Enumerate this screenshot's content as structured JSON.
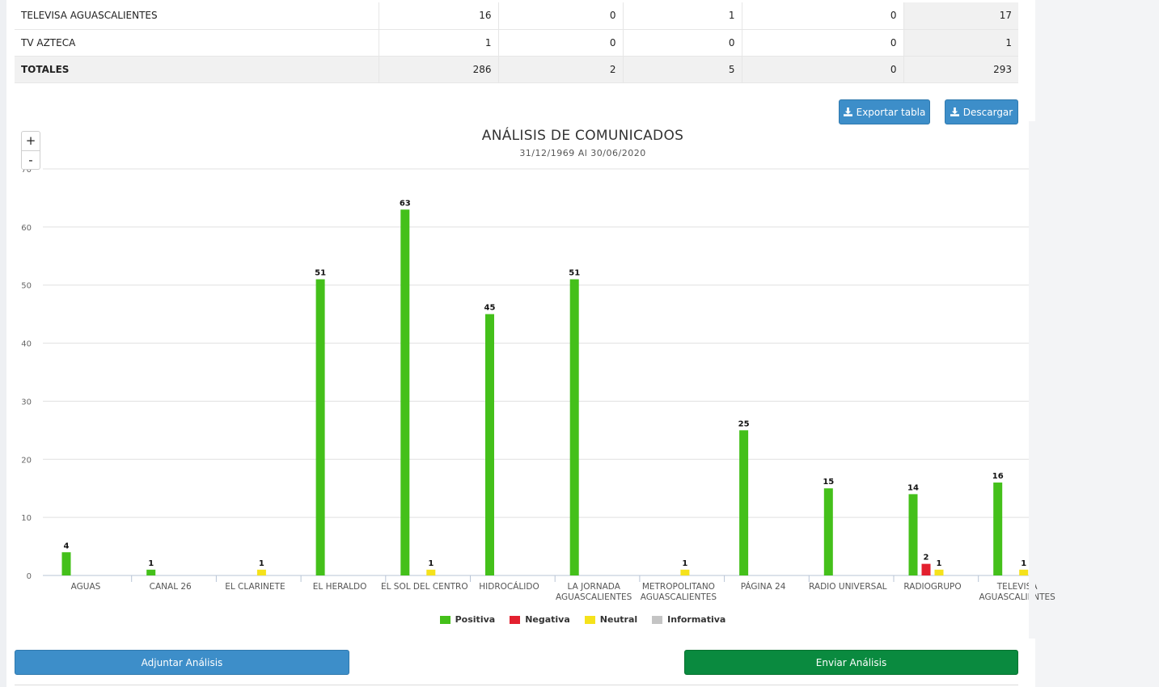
{
  "table": {
    "rows": [
      {
        "name": "TELEVISA AGUASCALIENTES",
        "positiva": "16",
        "negativa": "0",
        "neutral": "1",
        "informativa": "0",
        "total": "17"
      },
      {
        "name": "TV AZTECA",
        "positiva": "1",
        "negativa": "0",
        "neutral": "0",
        "informativa": "0",
        "total": "1"
      }
    ],
    "totals": {
      "label": "TOTALES",
      "positiva": "286",
      "negativa": "2",
      "neutral": "5",
      "informativa": "0",
      "total": "293"
    }
  },
  "toolbar": {
    "export_label": "Exportar tabla",
    "download_label": "Descargar"
  },
  "zoom": {
    "plus": "+",
    "minus": "-"
  },
  "colors": {
    "positiva": "#44c01a",
    "negativa": "#e3202f",
    "neutral": "#f5e21b",
    "informativa": "#c4c4c4",
    "button_blue": "#3d8ec9",
    "button_green": "#0a8a3f"
  },
  "chart_data": {
    "type": "bar",
    "title": "ANÁLISIS DE COMUNICADOS",
    "subtitle": "31/12/1969 Al 30/06/2020",
    "ylim": [
      0,
      70
    ],
    "yticks": [
      0,
      10,
      20,
      30,
      40,
      50,
      60,
      70
    ],
    "grid": true,
    "legend_position": "bottom",
    "categories": [
      [
        "AGUAS"
      ],
      [
        "CANAL 26"
      ],
      [
        "EL CLARINETE"
      ],
      [
        "EL HERALDO"
      ],
      [
        "EL SOL DEL CENTRO"
      ],
      [
        "HIDROCÁLIDO"
      ],
      [
        "LA JORNADA",
        "AGUASCALIENTES"
      ],
      [
        "METROPOLITANO",
        "AGUASCALIENTES"
      ],
      [
        "PÁGINA 24"
      ],
      [
        "RADIO UNIVERSAL"
      ],
      [
        "RADIOGRUPO"
      ],
      [
        "TELEVISA",
        "AGUASCALIENTES"
      ]
    ],
    "series": [
      {
        "name": "Positiva",
        "values": [
          4,
          1,
          0,
          51,
          63,
          45,
          51,
          0,
          25,
          15,
          14,
          16
        ]
      },
      {
        "name": "Negativa",
        "values": [
          0,
          0,
          0,
          0,
          0,
          0,
          0,
          0,
          0,
          0,
          2,
          0
        ]
      },
      {
        "name": "Neutral",
        "values": [
          0,
          0,
          1,
          0,
          1,
          0,
          0,
          1,
          0,
          0,
          1,
          1
        ]
      },
      {
        "name": "Informativa",
        "values": [
          0,
          0,
          0,
          0,
          0,
          0,
          0,
          0,
          0,
          0,
          0,
          0
        ]
      }
    ]
  },
  "actions": {
    "attach_label": "Adjuntar Análisis",
    "send_label": "Enviar Análisis"
  }
}
